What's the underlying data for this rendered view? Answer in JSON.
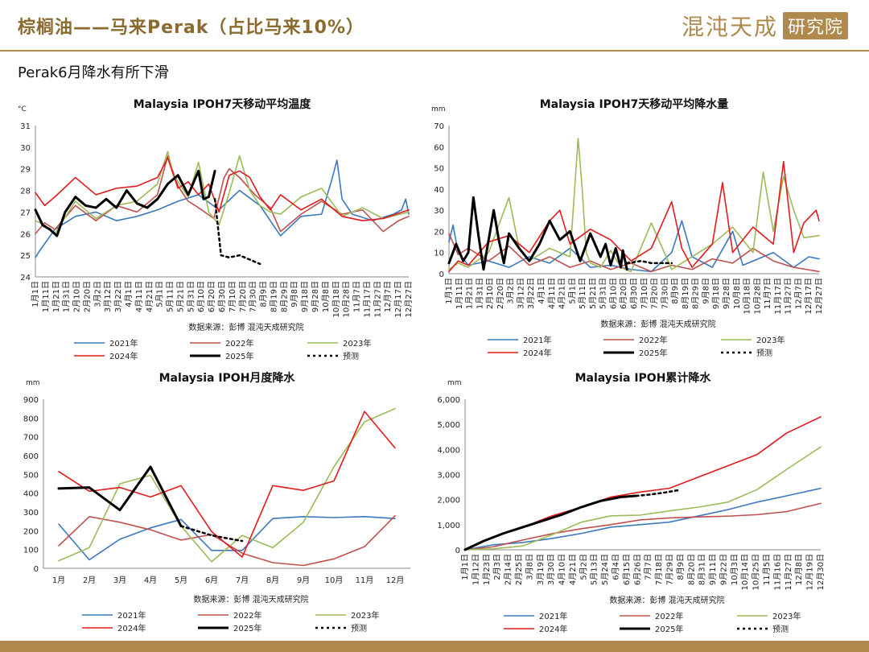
{
  "header": {
    "title": "棕榈油——马来Perak（占比马来10%）",
    "logo_main": "混沌天成",
    "logo_box": "研究院"
  },
  "subtitle": "Perak6月降水有所下滑",
  "colors": {
    "2021年": "#3b78c0",
    "2022年": "#c0504d",
    "2023年": "#9bbb59",
    "2024年": "#e41a1c",
    "2025年": "#000000",
    "预测": "#000000",
    "accent": "#b08a4c"
  },
  "chart_data": [
    {
      "id": "temp",
      "type": "line",
      "title": "Malaysia IPOH7天移动平均温度",
      "unit": "°C",
      "ylim": [
        24,
        31
      ],
      "yticks": [
        24,
        25,
        26,
        27,
        28,
        29,
        30,
        31
      ],
      "xticks": [
        "1月1日",
        "1月11日",
        "1月21日",
        "1月31日",
        "2月10日",
        "2月20日",
        "3月2日",
        "3月12日",
        "3月22日",
        "4月1日",
        "4月11日",
        "4月21日",
        "5月1日",
        "5月11日",
        "5月21日",
        "5月31日",
        "6月10日",
        "6月20日",
        "6月30日",
        "7月10日",
        "7月20日",
        "7月30日",
        "8月9日",
        "8月19日",
        "8月29日",
        "9月8日",
        "9月18日",
        "9月28日",
        "10月8日",
        "10月18日",
        "10月28日",
        "11月7日",
        "11月17日",
        "11月27日",
        "12月7日",
        "12月17日",
        "12月27日"
      ],
      "xdomain": [
        1,
        365
      ],
      "source": "数据来源：彭博  混沌天成研究院",
      "legend": [
        "2021年",
        "2022年",
        "2023年",
        "2024年",
        "2025年",
        "预测"
      ],
      "series": [
        {
          "name": "2021年",
          "x": [
            1,
            5,
            20,
            40,
            60,
            80,
            100,
            120,
            140,
            160,
            180,
            200,
            220,
            240,
            260,
            280,
            290,
            295,
            300,
            310,
            330,
            350,
            358,
            362,
            365
          ],
          "y": [
            24.9,
            25.2,
            26.2,
            26.8,
            27.0,
            26.6,
            26.8,
            27.1,
            27.5,
            27.8,
            27.1,
            28.0,
            27.3,
            25.9,
            26.8,
            26.9,
            28.5,
            29.4,
            27.6,
            26.9,
            26.6,
            26.9,
            27.1,
            27.6,
            26.9
          ]
        },
        {
          "name": "2022年",
          "x": [
            1,
            10,
            20,
            40,
            60,
            80,
            100,
            120,
            130,
            140,
            150,
            160,
            175,
            185,
            190,
            200,
            215,
            230,
            240,
            260,
            280,
            300,
            320,
            340,
            355,
            365
          ],
          "y": [
            26.0,
            26.5,
            26.2,
            27.3,
            26.6,
            27.3,
            27.0,
            27.8,
            29.6,
            28.2,
            27.5,
            27.2,
            26.7,
            28.6,
            29.0,
            28.6,
            27.8,
            27.2,
            26.1,
            26.9,
            27.5,
            26.9,
            27.1,
            26.1,
            26.6,
            26.8
          ]
        },
        {
          "name": "2023年",
          "x": [
            1,
            10,
            20,
            40,
            60,
            80,
            100,
            120,
            130,
            135,
            140,
            150,
            160,
            170,
            180,
            190,
            200,
            210,
            220,
            230,
            240,
            260,
            280,
            300,
            320,
            340,
            365
          ],
          "y": [
            26.6,
            26.4,
            26.0,
            27.5,
            26.7,
            27.3,
            27.5,
            28.3,
            29.8,
            28.8,
            28.4,
            27.7,
            29.3,
            27.0,
            26.4,
            27.9,
            29.6,
            28.0,
            27.3,
            27.0,
            26.9,
            27.7,
            28.1,
            26.8,
            27.2,
            26.7,
            27.0
          ]
        },
        {
          "name": "2024年",
          "x": [
            1,
            10,
            20,
            40,
            60,
            80,
            100,
            120,
            130,
            140,
            150,
            160,
            170,
            180,
            190,
            200,
            210,
            220,
            230,
            240,
            260,
            280,
            300,
            320,
            340,
            365
          ],
          "y": [
            27.9,
            27.3,
            27.7,
            28.6,
            27.8,
            28.1,
            28.2,
            28.6,
            29.5,
            28.1,
            28.4,
            27.8,
            28.3,
            27.0,
            28.7,
            28.9,
            28.6,
            27.7,
            27.1,
            27.8,
            27.1,
            27.6,
            26.8,
            26.6,
            26.7,
            27.1
          ]
        },
        {
          "name": "2025年",
          "x": [
            1,
            8,
            15,
            22,
            30,
            40,
            50,
            60,
            70,
            80,
            90,
            100,
            110,
            120,
            130,
            140,
            150,
            160,
            165,
            170,
            176
          ],
          "y": [
            27.1,
            26.4,
            26.2,
            25.9,
            27.0,
            27.7,
            27.3,
            27.2,
            27.6,
            27.2,
            28.0,
            27.4,
            27.2,
            27.6,
            28.3,
            28.7,
            27.8,
            28.9,
            27.6,
            27.7,
            28.9
          ]
        },
        {
          "name": "预测",
          "x": [
            176,
            182,
            190,
            200,
            210,
            220
          ],
          "y": [
            27.6,
            25.0,
            24.9,
            25.0,
            24.8,
            24.6
          ]
        }
      ]
    },
    {
      "id": "rain7",
      "type": "line",
      "title": "Malaysia IPOH7天移动平均降水量",
      "unit": "mm",
      "ylim": [
        0,
        70
      ],
      "yticks": [
        0,
        10,
        20,
        30,
        40,
        50,
        60,
        70
      ],
      "xticks": [
        "1月1日",
        "1月11日",
        "1月21日",
        "1月31日",
        "2月10日",
        "2月20日",
        "3月2日",
        "3月12日",
        "3月22日",
        "4月1日",
        "4月11日",
        "4月21日",
        "5月1日",
        "5月11日",
        "5月21日",
        "5月31日",
        "6月10日",
        "6月20日",
        "6月30日",
        "7月10日",
        "7月20日",
        "7月30日",
        "8月9日",
        "8月19日",
        "8月29日",
        "9月8日",
        "9月18日",
        "9月28日",
        "10月8日",
        "10月18日",
        "10月28日",
        "11月7日",
        "11月17日",
        "11月27日",
        "12月7日",
        "12月17日",
        "12月27日"
      ],
      "xdomain": [
        1,
        365
      ],
      "source": "数据来源：彭博  混沌天成研究院",
      "legend": [
        "2021年",
        "2022年",
        "2023年",
        "2024年",
        "2025年",
        "预测"
      ],
      "series": [
        {
          "name": "2021年",
          "x": [
            1,
            5,
            10,
            20,
            40,
            60,
            80,
            100,
            120,
            140,
            160,
            180,
            200,
            220,
            230,
            240,
            260,
            280,
            290,
            300,
            320,
            340,
            355,
            365
          ],
          "y": [
            15,
            23,
            10,
            4,
            6,
            3,
            8,
            5,
            12,
            3,
            4,
            2,
            1,
            10,
            25,
            8,
            3,
            20,
            4,
            6,
            10,
            3,
            8,
            7
          ]
        },
        {
          "name": "2022年",
          "x": [
            1,
            10,
            20,
            40,
            60,
            80,
            100,
            120,
            140,
            160,
            180,
            200,
            220,
            240,
            260,
            280,
            300,
            320,
            340,
            365
          ],
          "y": [
            19,
            9,
            12,
            6,
            13,
            4,
            8,
            3,
            6,
            2,
            5,
            1,
            4,
            2,
            7,
            5,
            12,
            6,
            3,
            1
          ]
        },
        {
          "name": "2023年",
          "x": [
            1,
            10,
            20,
            40,
            60,
            70,
            80,
            100,
            120,
            128,
            132,
            136,
            140,
            150,
            160,
            170,
            180,
            200,
            220,
            240,
            260,
            280,
            300,
            310,
            320,
            330,
            340,
            350,
            365
          ],
          "y": [
            2,
            5,
            3,
            10,
            36,
            12,
            6,
            12,
            8,
            64,
            40,
            10,
            5,
            3,
            11,
            3,
            1,
            24,
            2,
            8,
            14,
            22,
            10,
            48,
            20,
            46,
            30,
            17,
            18
          ]
        },
        {
          "name": "2024年",
          "x": [
            1,
            10,
            20,
            40,
            60,
            80,
            100,
            110,
            120,
            140,
            160,
            180,
            200,
            220,
            230,
            240,
            260,
            270,
            280,
            300,
            320,
            330,
            340,
            350,
            362,
            365
          ],
          "y": [
            1,
            6,
            4,
            15,
            18,
            10,
            25,
            30,
            14,
            21,
            16,
            6,
            12,
            34,
            12,
            3,
            14,
            43,
            10,
            22,
            14,
            53,
            10,
            24,
            30,
            25
          ]
        },
        {
          "name": "2025年",
          "x": [
            1,
            8,
            15,
            20,
            25,
            30,
            35,
            45,
            50,
            55,
            60,
            70,
            80,
            90,
            100,
            110,
            120,
            130,
            140,
            150,
            155,
            160,
            165,
            170,
            172,
            176
          ],
          "y": [
            5,
            14,
            6,
            10,
            36,
            18,
            2,
            30,
            16,
            5,
            19,
            12,
            6,
            14,
            25,
            16,
            20,
            6,
            19,
            8,
            14,
            4,
            12,
            3,
            11,
            2
          ]
        },
        {
          "name": "预测",
          "x": [
            176,
            190,
            200,
            210,
            215,
            220
          ],
          "y": [
            5,
            6,
            5,
            5,
            5,
            5
          ]
        }
      ]
    },
    {
      "id": "monthly",
      "type": "line",
      "title": "Malaysia IPOH月度降水",
      "unit": "mm",
      "ylim": [
        0,
        900
      ],
      "yticks": [
        0,
        100,
        200,
        300,
        400,
        500,
        600,
        700,
        800,
        900
      ],
      "categories": [
        "1月",
        "2月",
        "3月",
        "4月",
        "5月",
        "6月",
        "7月",
        "8月",
        "9月",
        "10月",
        "11月",
        "12月"
      ],
      "source": "数据来源：彭博  混沌天成研究院",
      "legend": [
        "2021年",
        "2022年",
        "2023年",
        "2024年",
        "2025年",
        "预测"
      ],
      "series": [
        {
          "name": "2021年",
          "values": [
            235,
            45,
            155,
            215,
            260,
            95,
            95,
            265,
            275,
            270,
            275,
            265
          ]
        },
        {
          "name": "2022年",
          "values": [
            120,
            275,
            245,
            205,
            150,
            180,
            80,
            30,
            15,
            50,
            115,
            280
          ]
        },
        {
          "name": "2023年",
          "values": [
            40,
            110,
            450,
            495,
            225,
            35,
            175,
            110,
            245,
            540,
            780,
            850
          ]
        },
        {
          "name": "2024年",
          "values": [
            515,
            410,
            430,
            380,
            440,
            195,
            60,
            440,
            415,
            465,
            835,
            640
          ]
        },
        {
          "name": "2025年",
          "values": [
            425,
            430,
            310,
            540,
            225,
            null,
            null,
            null,
            null,
            null,
            null,
            null
          ]
        },
        {
          "name": "预测",
          "values": [
            null,
            null,
            null,
            null,
            225,
            175,
            145,
            null,
            null,
            null,
            null,
            null
          ]
        }
      ]
    },
    {
      "id": "cumulative",
      "type": "line",
      "title": "Malaysia IPOH累计降水",
      "unit": "mm",
      "ylim": [
        0,
        6000
      ],
      "yticks": [
        0,
        1000,
        2000,
        3000,
        4000,
        5000,
        6000
      ],
      "ytick_labels": [
        "0",
        "1,000",
        "2,000",
        "3,000",
        "4,000",
        "5,000",
        "6,000"
      ],
      "xticks": [
        "1月1日",
        "1月12日",
        "1月23日",
        "2月3日",
        "2月14日",
        "2月25日",
        "3月8日",
        "3月19日",
        "3月30日",
        "4月10日",
        "4月21日",
        "5月2日",
        "5月13日",
        "5月24日",
        "6月4日",
        "6月15日",
        "6月26日",
        "7月7日",
        "7月18日",
        "7月29日",
        "8月9日",
        "8月20日",
        "8月31日",
        "9月11日",
        "9月22日",
        "10月3日",
        "10月14日",
        "10月25日",
        "11月5日",
        "11月16日",
        "11月27日",
        "12月8日",
        "12月19日",
        "12月30日"
      ],
      "xdomain": [
        1,
        365
      ],
      "source": "数据来源：彭博  混沌天成研究院",
      "legend": [
        "2021年",
        "2022年",
        "2023年",
        "2024年",
        "2025年",
        "预测"
      ],
      "series": [
        {
          "name": "2021年",
          "x": [
            1,
            30,
            60,
            90,
            120,
            150,
            180,
            210,
            240,
            270,
            300,
            330,
            365
          ],
          "y": [
            0,
            200,
            290,
            450,
            650,
            900,
            1000,
            1100,
            1350,
            1600,
            1900,
            2150,
            2450
          ]
        },
        {
          "name": "2022年",
          "x": [
            1,
            30,
            60,
            90,
            120,
            150,
            180,
            210,
            240,
            270,
            300,
            330,
            365
          ],
          "y": [
            0,
            120,
            390,
            640,
            840,
            1000,
            1190,
            1270,
            1310,
            1340,
            1400,
            1520,
            1850
          ]
        },
        {
          "name": "2023年",
          "x": [
            1,
            30,
            60,
            90,
            120,
            150,
            180,
            210,
            240,
            270,
            300,
            330,
            365
          ],
          "y": [
            0,
            40,
            150,
            600,
            1100,
            1350,
            1380,
            1550,
            1700,
            1900,
            2400,
            3200,
            4100
          ]
        },
        {
          "name": "2024年",
          "x": [
            1,
            30,
            60,
            90,
            120,
            150,
            180,
            210,
            240,
            270,
            300,
            330,
            365
          ],
          "y": [
            0,
            500,
            900,
            1350,
            1700,
            2100,
            2300,
            2450,
            2900,
            3350,
            3800,
            4650,
            5300
          ]
        },
        {
          "name": "2025年",
          "x": [
            1,
            20,
            40,
            60,
            80,
            100,
            120,
            140,
            160,
            176
          ],
          "y": [
            0,
            350,
            650,
            900,
            1150,
            1400,
            1700,
            1950,
            2100,
            2150
          ]
        },
        {
          "name": "预测",
          "x": [
            176,
            190,
            205,
            220
          ],
          "y": [
            2150,
            2200,
            2280,
            2380
          ]
        }
      ]
    }
  ]
}
